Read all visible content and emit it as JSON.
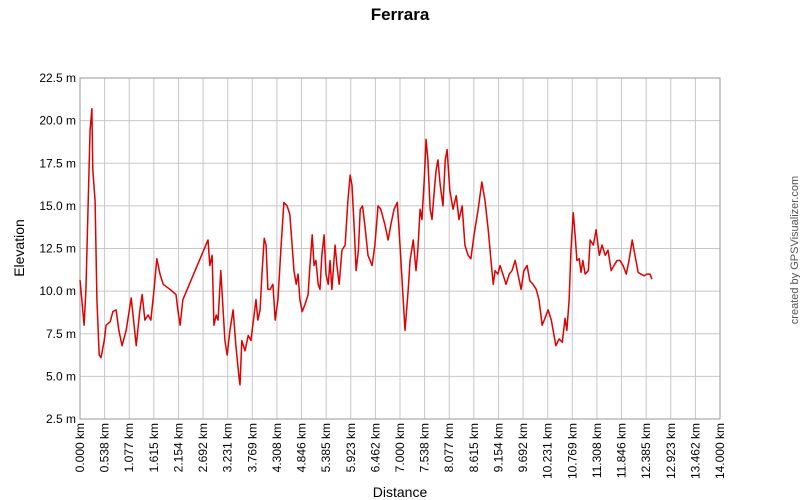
{
  "chart_data": {
    "type": "line",
    "title": "Ferrara",
    "x_label": "Distance",
    "y_label": "Elevation",
    "credit": "created by GPSVisualizer.com",
    "xlim": [
      0,
      14
    ],
    "ylim": [
      2.5,
      22.5
    ],
    "grid": true,
    "xticks": [
      {
        "value": 0,
        "label": "0.000 km"
      },
      {
        "value": 0.538,
        "label": "0.538 km"
      },
      {
        "value": 1.077,
        "label": "1.077 km"
      },
      {
        "value": 1.615,
        "label": "1.615 km"
      },
      {
        "value": 2.154,
        "label": "2.154 km"
      },
      {
        "value": 2.692,
        "label": "2.692 km"
      },
      {
        "value": 3.231,
        "label": "3.231 km"
      },
      {
        "value": 3.769,
        "label": "3.769 km"
      },
      {
        "value": 4.308,
        "label": "4.308 km"
      },
      {
        "value": 4.846,
        "label": "4.846 km"
      },
      {
        "value": 5.385,
        "label": "5.385 km"
      },
      {
        "value": 5.923,
        "label": "5.923 km"
      },
      {
        "value": 6.462,
        "label": "6.462 km"
      },
      {
        "value": 7.0,
        "label": "7.000 km"
      },
      {
        "value": 7.538,
        "label": "7.538 km"
      },
      {
        "value": 8.077,
        "label": "8.077 km"
      },
      {
        "value": 8.615,
        "label": "8.615 km"
      },
      {
        "value": 9.154,
        "label": "9.154 km"
      },
      {
        "value": 9.692,
        "label": "9.692 km"
      },
      {
        "value": 10.231,
        "label": "10.231 km"
      },
      {
        "value": 10.769,
        "label": "10.769 km"
      },
      {
        "value": 11.308,
        "label": "11.308 km"
      },
      {
        "value": 11.846,
        "label": "11.846 km"
      },
      {
        "value": 12.385,
        "label": "12.385 km"
      },
      {
        "value": 12.923,
        "label": "12.923 km"
      },
      {
        "value": 13.462,
        "label": "13.462 km"
      },
      {
        "value": 14.0,
        "label": "14.000 km"
      }
    ],
    "yticks": [
      {
        "value": 2.5,
        "label": "2.5 m"
      },
      {
        "value": 5.0,
        "label": "5.0 m"
      },
      {
        "value": 7.5,
        "label": "7.5 m"
      },
      {
        "value": 10.0,
        "label": "10.0 m"
      },
      {
        "value": 12.5,
        "label": "12.5 m"
      },
      {
        "value": 15.0,
        "label": "15.0 m"
      },
      {
        "value": 17.5,
        "label": "17.5 m"
      },
      {
        "value": 20.0,
        "label": "20.0 m"
      },
      {
        "value": 22.5,
        "label": "22.5 m"
      }
    ],
    "series": [
      {
        "color": "#e00000",
        "x": [
          0,
          0.04,
          0.09,
          0.13,
          0.18,
          0.22,
          0.26,
          0.28,
          0.33,
          0.37,
          0.42,
          0.46,
          0.53,
          0.57,
          0.66,
          0.72,
          0.79,
          0.85,
          0.92,
          1.01,
          1.12,
          1.16,
          1.23,
          1.31,
          1.36,
          1.42,
          1.49,
          1.55,
          1.62,
          1.68,
          1.75,
          1.82,
          1.97,
          2.1,
          2.14,
          2.19,
          2.25,
          2.8,
          2.84,
          2.89,
          2.91,
          2.93,
          2.98,
          3.02,
          3.08,
          3.13,
          3.17,
          3.22,
          3.28,
          3.35,
          3.41,
          3.48,
          3.5,
          3.54,
          3.61,
          3.68,
          3.74,
          3.78,
          3.85,
          3.89,
          3.94,
          3.98,
          4.03,
          4.07,
          4.11,
          4.16,
          4.22,
          4.27,
          4.33,
          4.4,
          4.46,
          4.53,
          4.59,
          4.64,
          4.68,
          4.73,
          4.77,
          4.81,
          4.86,
          4.92,
          4.99,
          5.03,
          5.08,
          5.12,
          5.16,
          5.21,
          5.25,
          5.29,
          5.34,
          5.38,
          5.43,
          5.47,
          5.51,
          5.58,
          5.62,
          5.67,
          5.73,
          5.8,
          5.86,
          5.91,
          5.95,
          6.0,
          6.04,
          6.09,
          6.13,
          6.18,
          6.23,
          6.3,
          6.39,
          6.45,
          6.52,
          6.58,
          6.67,
          6.74,
          6.8,
          6.87,
          6.94,
          7.0,
          7.07,
          7.11,
          7.18,
          7.22,
          7.29,
          7.35,
          7.39,
          7.44,
          7.48,
          7.53,
          7.57,
          7.61,
          7.66,
          7.7,
          7.75,
          7.79,
          7.83,
          7.88,
          7.94,
          7.99,
          8.03,
          8.09,
          8.16,
          8.23,
          8.29,
          8.36,
          8.42,
          8.49,
          8.55,
          8.62,
          8.71,
          8.79,
          8.86,
          8.93,
          8.99,
          9.04,
          9.08,
          9.14,
          9.19,
          9.25,
          9.32,
          9.39,
          9.45,
          9.52,
          9.58,
          9.65,
          9.71,
          9.78,
          9.84,
          9.91,
          9.98,
          10.04,
          10.11,
          10.17,
          10.24,
          10.31,
          10.35,
          10.41,
          10.48,
          10.55,
          10.61,
          10.65,
          10.7,
          10.74,
          10.79,
          10.83,
          10.87,
          10.92,
          10.96,
          11.0,
          11.05,
          11.12,
          11.16,
          11.23,
          11.29,
          11.36,
          11.42,
          11.49,
          11.55,
          11.62,
          11.68,
          11.75,
          11.81,
          11.88,
          11.95,
          12.01,
          12.08,
          12.14,
          12.21,
          12.27,
          12.34,
          12.4,
          12.47,
          12.51
        ],
        "values": [
          10.65,
          9.5,
          8.0,
          10.1,
          15.3,
          19.4,
          20.7,
          17.1,
          15.3,
          9.5,
          6.25,
          6.1,
          7.1,
          8.0,
          8.2,
          8.8,
          8.9,
          7.7,
          6.8,
          7.7,
          9.6,
          8.6,
          6.8,
          8.9,
          9.8,
          8.3,
          8.6,
          8.3,
          10.1,
          11.9,
          11.0,
          10.4,
          10.1,
          9.8,
          8.9,
          8.0,
          9.5,
          13.0,
          11.5,
          12.1,
          10.1,
          8.0,
          8.6,
          8.3,
          11.2,
          8.9,
          7.1,
          6.25,
          7.7,
          8.9,
          6.8,
          4.9,
          4.5,
          7.1,
          6.5,
          7.4,
          7.1,
          8.0,
          9.5,
          8.3,
          8.9,
          11.0,
          13.1,
          12.7,
          10.1,
          10.1,
          10.4,
          8.3,
          9.5,
          12.7,
          15.2,
          15.0,
          14.5,
          12.7,
          11.2,
          10.4,
          11.0,
          9.5,
          8.8,
          9.2,
          9.8,
          11.5,
          13.3,
          11.5,
          11.8,
          10.4,
          10.1,
          12.1,
          13.3,
          11.0,
          10.4,
          11.8,
          10.1,
          12.7,
          11.5,
          10.4,
          12.4,
          12.7,
          15.3,
          16.8,
          16.2,
          13.6,
          11.2,
          12.4,
          14.8,
          15.0,
          13.9,
          12.1,
          11.5,
          12.7,
          15.0,
          14.8,
          13.9,
          13.0,
          13.9,
          14.8,
          15.2,
          12.7,
          9.5,
          7.7,
          10.1,
          11.8,
          13.0,
          11.2,
          12.4,
          14.8,
          14.2,
          16.5,
          18.9,
          17.7,
          14.8,
          14.2,
          15.9,
          17.1,
          17.7,
          16.2,
          15.0,
          17.7,
          18.3,
          15.9,
          14.8,
          15.6,
          14.2,
          15.0,
          12.7,
          12.1,
          11.9,
          13.3,
          14.8,
          16.4,
          15.3,
          13.6,
          11.8,
          10.4,
          11.2,
          11.0,
          11.5,
          11.0,
          10.4,
          11.0,
          11.2,
          11.8,
          11.0,
          10.1,
          11.2,
          11.5,
          10.6,
          10.4,
          10.1,
          9.5,
          8.0,
          8.4,
          8.9,
          8.3,
          7.7,
          6.8,
          7.2,
          7.0,
          8.4,
          7.7,
          9.5,
          12.4,
          14.6,
          13.3,
          11.8,
          11.9,
          11.1,
          11.8,
          11.0,
          11.2,
          13.0,
          12.7,
          13.6,
          12.1,
          12.7,
          12.1,
          12.4,
          11.2,
          11.5,
          11.8,
          11.8,
          11.5,
          11.0,
          11.8,
          13.0,
          12.1,
          11.1,
          11.0,
          10.9,
          11.0,
          11.0,
          10.7
        ]
      }
    ]
  }
}
